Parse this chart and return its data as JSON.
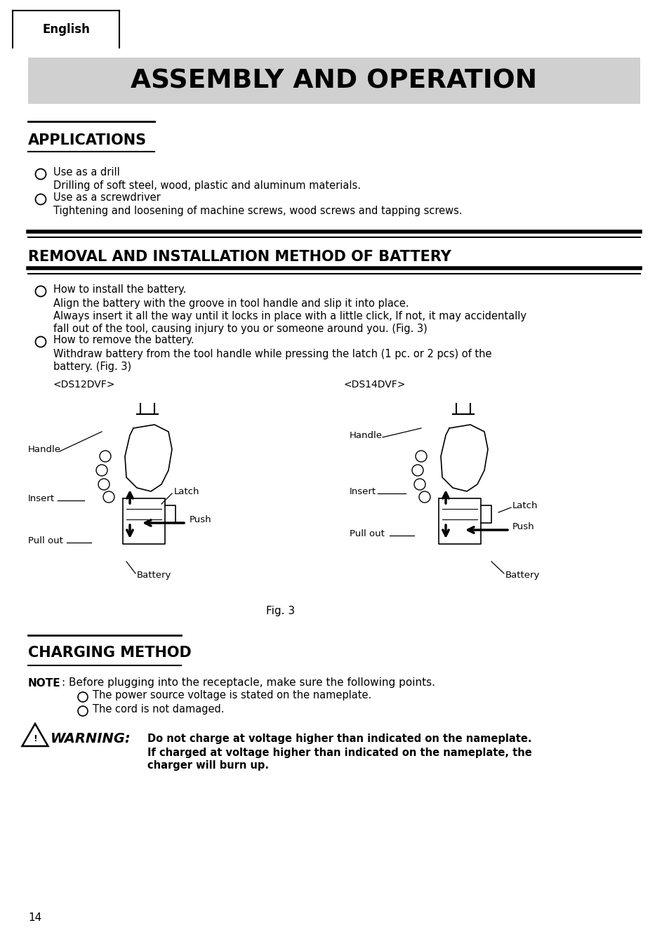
{
  "bg_color": "#ffffff",
  "tab_label": "English",
  "main_title": "ASSEMBLY AND OPERATION",
  "main_title_bg": "#d0d0d0",
  "section1_title": "APPLICATIONS",
  "section2_title": "REMOVAL AND INSTALLATION METHOD OF BATTERY",
  "section3_title": "CHARGING METHOD",
  "note_label": "NOTE",
  "note_colon": ":",
  "note_text": " Before plugging into the receptacle, make sure the following points.",
  "note_items": [
    "The power source voltage is stated on the nameplate.",
    "The cord is not damaged."
  ],
  "warning_label": "WARNING:",
  "warning_text1": "Do not charge at voltage higher than indicated on the nameplate.",
  "warning_text2": "If charged at voltage higher than indicated on the nameplate, the",
  "warning_text3": "charger will burn up.",
  "page_number": "14",
  "fig_caption": "Fig. 3",
  "left_fig_label": "<DS12DVF>",
  "right_fig_label": "<DS14DVF>"
}
